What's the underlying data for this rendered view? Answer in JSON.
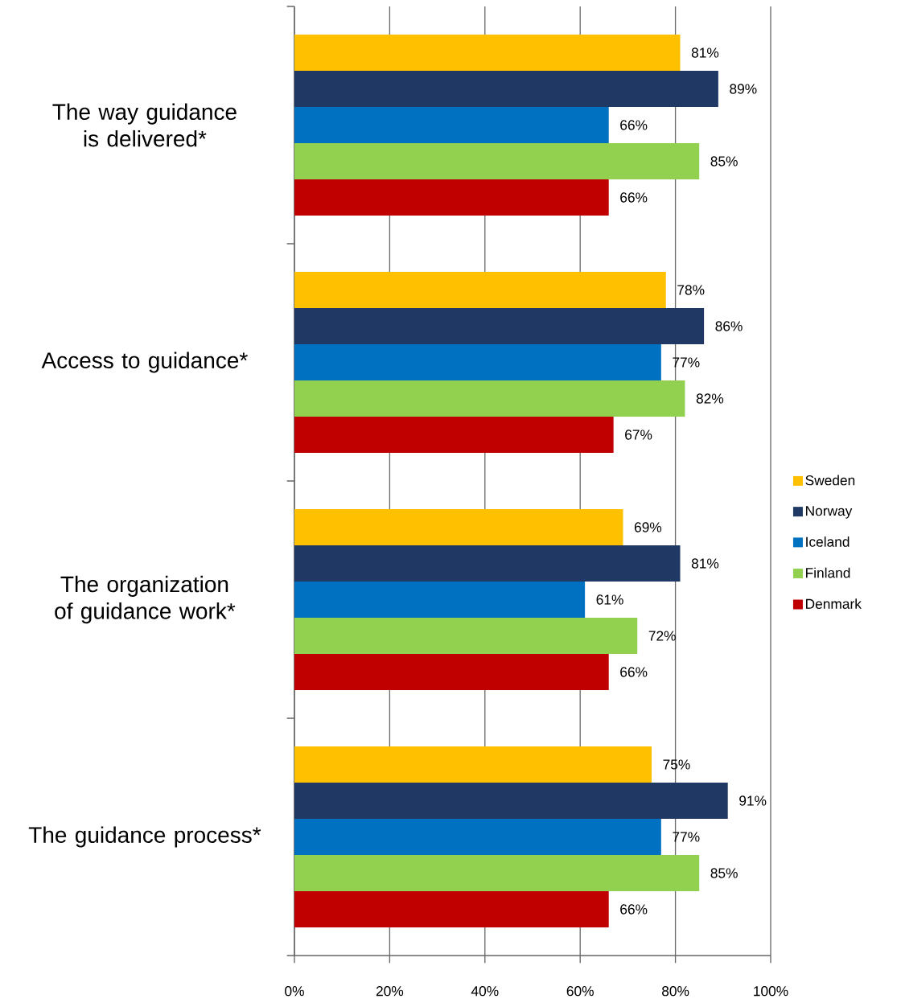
{
  "chart_data": {
    "type": "bar",
    "orientation": "horizontal",
    "categories": [
      "The way guidance is delivered*",
      "Access to guidance*",
      "The organization of guidance work*",
      "The guidance process*"
    ],
    "series": [
      {
        "name": "Sweden",
        "color": "#ffc000",
        "values": [
          81,
          78,
          69,
          75
        ],
        "value_labels": [
          "81%",
          "78%",
          "69%",
          "75%"
        ]
      },
      {
        "name": "Norway",
        "color": "#1f3864",
        "values": [
          89,
          86,
          81,
          91
        ],
        "value_labels": [
          "89%",
          "86%",
          "81%",
          "91%"
        ]
      },
      {
        "name": "Iceland",
        "color": "#0070c0",
        "values": [
          66,
          77,
          61,
          77
        ],
        "value_labels": [
          "66%",
          "77%",
          "61%",
          "77%"
        ]
      },
      {
        "name": "Finland",
        "color": "#92d050",
        "values": [
          85,
          82,
          72,
          85
        ],
        "value_labels": [
          "85%",
          "82%",
          "72%",
          "85%"
        ]
      },
      {
        "name": "Denmark",
        "color": "#c00000",
        "values": [
          66,
          67,
          66,
          66
        ],
        "value_labels": [
          "66%",
          "67%",
          "66%",
          "66%"
        ]
      }
    ],
    "xlim": [
      0,
      100
    ],
    "xticks": [
      {
        "value": 0,
        "label": "0%"
      },
      {
        "value": 20,
        "label": "20%"
      },
      {
        "value": 40,
        "label": "40%"
      },
      {
        "value": 60,
        "label": "60%"
      },
      {
        "value": 80,
        "label": "80%"
      },
      {
        "value": 100,
        "label": "100%"
      }
    ],
    "grid": "x",
    "legend": "right"
  }
}
